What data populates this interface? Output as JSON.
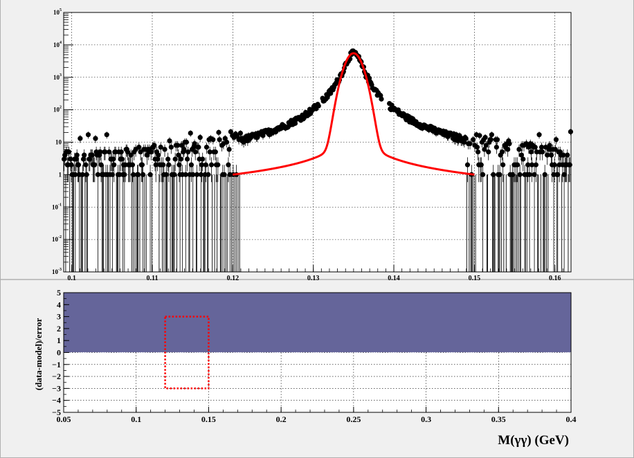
{
  "chart_data": [
    {
      "type": "scatter",
      "title": "",
      "xlabel": "",
      "ylabel": "",
      "xlim": [
        0.099,
        0.162
      ],
      "ylim": [
        0.001,
        100000
      ],
      "log_y": true,
      "grid": true,
      "x_ticks": [
        0.1,
        0.11,
        0.12,
        0.13,
        0.14,
        0.15,
        0.16
      ],
      "x_tick_labels": [
        "0.1",
        "0.11",
        "0.12",
        "0.13",
        "0.14",
        "0.15",
        "0.16"
      ],
      "y_tick_labels": [
        {
          "base": "10",
          "exp": "-3",
          "value": 0.001
        },
        {
          "base": "10",
          "exp": "-2",
          "value": 0.01
        },
        {
          "base": "10",
          "exp": "-1",
          "value": 0.1
        },
        {
          "base": "1",
          "exp": "",
          "value": 1
        },
        {
          "base": "10",
          "exp": "",
          "value": 10
        },
        {
          "base": "10",
          "exp": "2",
          "value": 100
        },
        {
          "base": "10",
          "exp": "3",
          "value": 1000
        },
        {
          "base": "10",
          "exp": "4",
          "value": 10000
        },
        {
          "base": "10",
          "exp": "5",
          "value": 100000
        }
      ],
      "fit": {
        "color": "#ff0000",
        "x_range": [
          0.12,
          0.15
        ],
        "peak_x": 0.135,
        "peak_y": 5500,
        "points": [
          {
            "x": 0.12,
            "y": 1.0
          },
          {
            "x": 0.125,
            "y": 2.2
          },
          {
            "x": 0.13,
            "y": 10
          },
          {
            "x": 0.133,
            "y": 150
          },
          {
            "x": 0.135,
            "y": 5500
          },
          {
            "x": 0.137,
            "y": 150
          },
          {
            "x": 0.14,
            "y": 10
          },
          {
            "x": 0.145,
            "y": 2.2
          },
          {
            "x": 0.15,
            "y": 1.0
          }
        ]
      },
      "data_points_description": "Per-bin counts: ~1-20 background across range, signal peak near 0.135 with ~5500 counts; empty bins in 0.131-0.139 outside peak",
      "background_level": [
        1,
        20
      ],
      "gap_ranges": [
        [
          0.1307,
          0.1311
        ],
        [
          0.1385,
          0.1394
        ]
      ],
      "marker_color": "#000000"
    },
    {
      "type": "area",
      "title": "",
      "xlabel": "M(γγ) (GeV)",
      "ylabel": "(data-model)/error",
      "xlim": [
        0.05,
        0.4
      ],
      "ylim": [
        -5,
        5
      ],
      "grid": true,
      "x_ticks": [
        0.05,
        0.1,
        0.15,
        0.2,
        0.25,
        0.3,
        0.35,
        0.4
      ],
      "x_tick_labels": [
        "0.05",
        "0.1",
        "0.15",
        "0.2",
        "0.25",
        "0.3",
        "0.35",
        "0.4"
      ],
      "y_ticks": [
        -5,
        -4,
        -3,
        -2,
        -1,
        0,
        1,
        2,
        3,
        4,
        5
      ],
      "y_tick_labels": [
        "−5",
        "−4",
        "−3",
        "−2",
        "−1",
        "0",
        "1",
        "2",
        "3",
        "4",
        "5"
      ],
      "fill": {
        "color": "#65659a",
        "x_range": [
          0.05,
          0.4
        ],
        "y_range": [
          0,
          5
        ]
      },
      "box": {
        "color": "#ff0000",
        "x_range": [
          0.12,
          0.15
        ],
        "y_range": [
          -3,
          3
        ],
        "style": "dotted"
      }
    }
  ]
}
